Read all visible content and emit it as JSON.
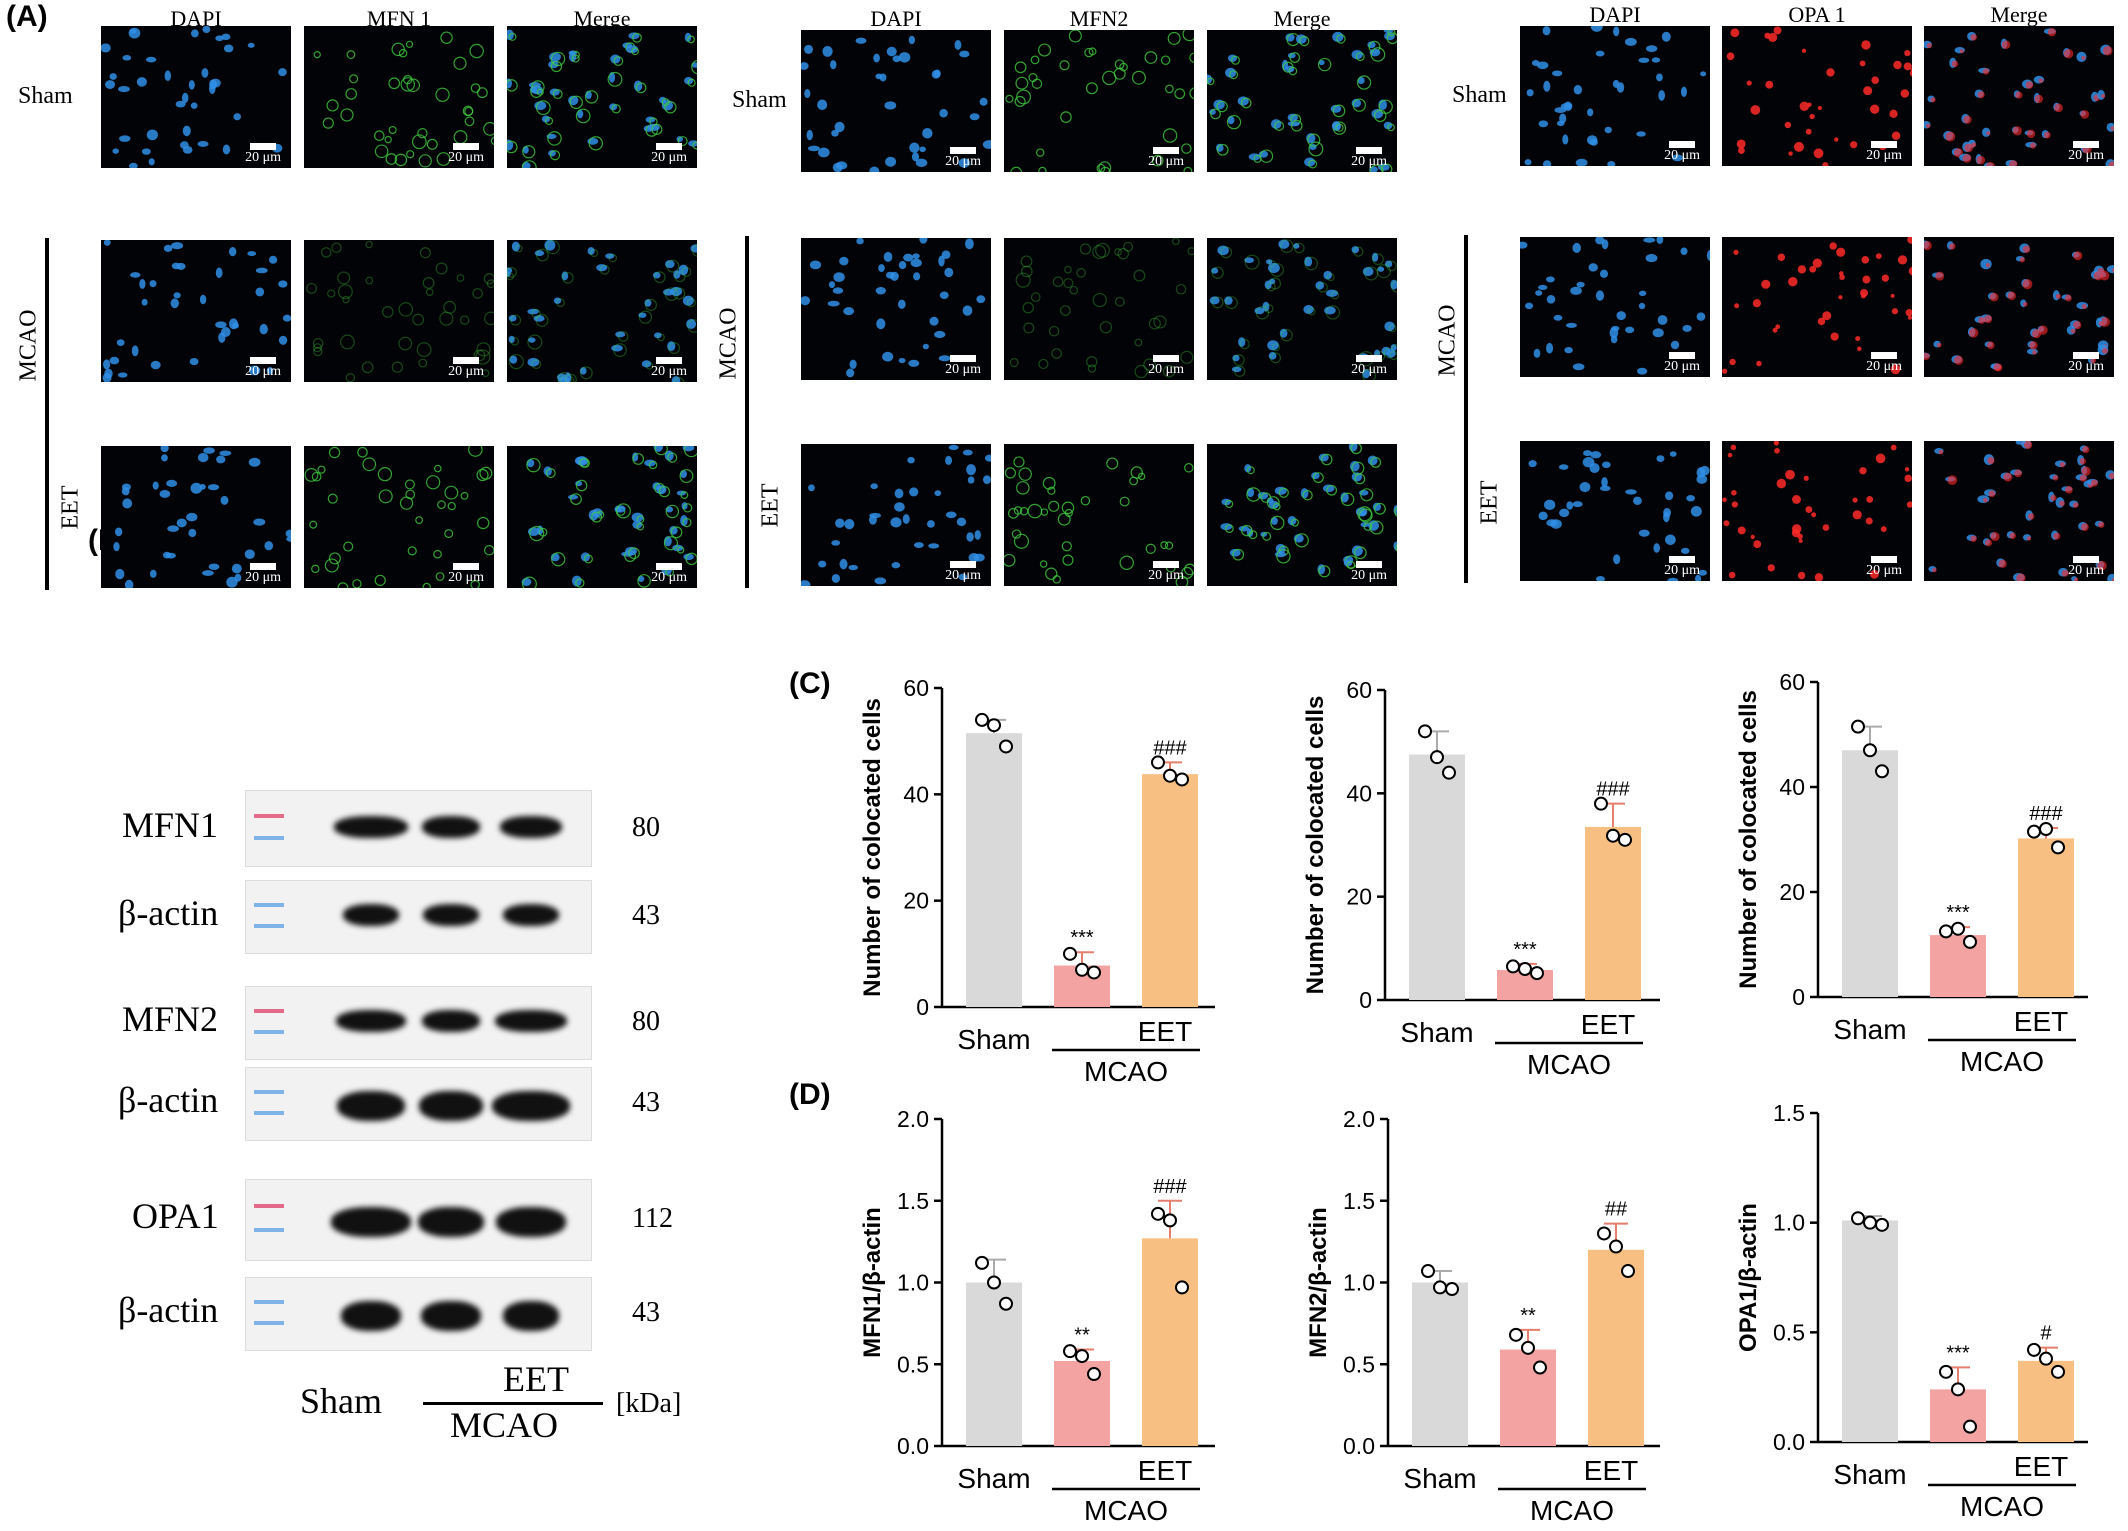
{
  "panels": {
    "A": "(A)",
    "B": "(B)",
    "C": "(C)",
    "D": "(D)"
  },
  "if_groups": [
    {
      "columns": [
        "DAPI",
        "MFN 1",
        "Merge"
      ],
      "marker_color": "#3ecb3e",
      "rows": [
        "Sham",
        "MCAO",
        "EET"
      ]
    },
    {
      "columns": [
        "DAPI",
        "MFN2",
        "Merge"
      ],
      "marker_color": "#3ecb3e",
      "rows": [
        "Sham",
        "MCAO",
        "EET"
      ]
    },
    {
      "columns": [
        "DAPI",
        "OPA 1",
        "Merge"
      ],
      "marker_color": "#ff2a2a",
      "rows": [
        "Sham",
        "MCAO",
        "EET"
      ]
    }
  ],
  "scale_bar_text": "20 μm",
  "western_blot": {
    "rows": [
      {
        "label": "MFN1",
        "kda": "80"
      },
      {
        "label": "β-actin",
        "kda": "43"
      },
      {
        "label": "MFN2",
        "kda": "80"
      },
      {
        "label": "β-actin",
        "kda": "43"
      },
      {
        "label": "OPA1",
        "kda": "112"
      },
      {
        "label": "β-actin",
        "kda": "43"
      }
    ],
    "x_sham": "Sham",
    "x_eet": "EET",
    "x_mcao": "MCAO",
    "unit": "[kDa]"
  },
  "colors": {
    "sham": "#d9d9d9",
    "mcao": "#f4a3a3",
    "eet": "#f8bf82",
    "dapi": "#2f8fe8"
  },
  "chart_data": [
    {
      "type": "bar",
      "panel": "C",
      "categories": [
        "Sham",
        "MCAO",
        "EET"
      ],
      "group_label": "MCAO",
      "ylabel": "Number of  colocated cells",
      "ylim": [
        0,
        60
      ],
      "yticks": [
        "0",
        "20",
        "40",
        "60"
      ],
      "values": [
        51.5,
        7.8,
        43.8
      ],
      "errors": [
        2.5,
        2.5,
        2.2
      ],
      "points": [
        [
          54,
          53,
          49
        ],
        [
          10,
          7,
          6.5
        ],
        [
          46,
          43.5,
          42.8
        ]
      ],
      "annotations": [
        "",
        "***",
        "###"
      ]
    },
    {
      "type": "bar",
      "panel": "C",
      "categories": [
        "Sham",
        "MCAO",
        "EET"
      ],
      "group_label": "MCAO",
      "ylabel": "Number of  colocated cells",
      "ylim": [
        0,
        60
      ],
      "yticks": [
        "0",
        "20",
        "40",
        "60"
      ],
      "values": [
        47.5,
        5.8,
        33.5
      ],
      "errors": [
        4.5,
        1.2,
        4.5
      ],
      "points": [
        [
          52,
          47,
          44
        ],
        [
          6.5,
          6,
          5.2
        ],
        [
          38,
          31.8,
          31
        ]
      ],
      "annotations": [
        "",
        "***",
        "###"
      ]
    },
    {
      "type": "bar",
      "panel": "C",
      "categories": [
        "Sham",
        "MCAO",
        "EET"
      ],
      "group_label": "MCAO",
      "ylabel": "Number of  colocated cells",
      "ylim": [
        0,
        60
      ],
      "yticks": [
        "0",
        "20",
        "40",
        "60"
      ],
      "values": [
        47.0,
        11.8,
        30.2
      ],
      "errors": [
        4.5,
        1.5,
        2.0
      ],
      "points": [
        [
          51.5,
          47,
          43
        ],
        [
          12.5,
          13,
          10.5
        ],
        [
          31.5,
          32,
          28.5
        ]
      ],
      "annotations": [
        "",
        "***",
        "###"
      ]
    },
    {
      "type": "bar",
      "panel": "D",
      "categories": [
        "Sham",
        "MCAO",
        "EET"
      ],
      "group_label": "MCAO",
      "ylabel": "MFN1/β-actin",
      "ylim": [
        0,
        2.0
      ],
      "yticks": [
        "0.0",
        "0.5",
        "1.0",
        "1.5",
        "2.0"
      ],
      "values": [
        1.0,
        0.52,
        1.27
      ],
      "errors": [
        0.14,
        0.07,
        0.23
      ],
      "points": [
        [
          1.12,
          1.0,
          0.87
        ],
        [
          0.58,
          0.55,
          0.44
        ],
        [
          1.42,
          1.38,
          0.97
        ]
      ],
      "annotations": [
        "",
        "**",
        "###"
      ]
    },
    {
      "type": "bar",
      "panel": "D",
      "categories": [
        "Sham",
        "MCAO",
        "EET"
      ],
      "group_label": "MCAO",
      "ylabel": "MFN2/β-actin",
      "ylim": [
        0,
        2.0
      ],
      "yticks": [
        "0.0",
        "0.5",
        "1.0",
        "1.5",
        "2.0"
      ],
      "values": [
        1.0,
        0.59,
        1.2
      ],
      "errors": [
        0.07,
        0.12,
        0.16
      ],
      "points": [
        [
          1.07,
          0.97,
          0.96
        ],
        [
          0.68,
          0.6,
          0.48
        ],
        [
          1.3,
          1.22,
          1.07
        ]
      ],
      "annotations": [
        "",
        "**",
        "##"
      ]
    },
    {
      "type": "bar",
      "panel": "D",
      "categories": [
        "Sham",
        "MCAO",
        "EET"
      ],
      "group_label": "MCAO",
      "ylabel": "OPA1/β-actin",
      "ylim": [
        0,
        1.5
      ],
      "yticks": [
        "0.0",
        "0.5",
        "1.0",
        "1.5"
      ],
      "values": [
        1.01,
        0.24,
        0.37
      ],
      "errors": [
        0.02,
        0.1,
        0.06
      ],
      "points": [
        [
          1.02,
          1.0,
          0.99
        ],
        [
          0.32,
          0.24,
          0.07
        ],
        [
          0.42,
          0.38,
          0.32
        ]
      ],
      "annotations": [
        "",
        "***",
        "#"
      ]
    }
  ]
}
